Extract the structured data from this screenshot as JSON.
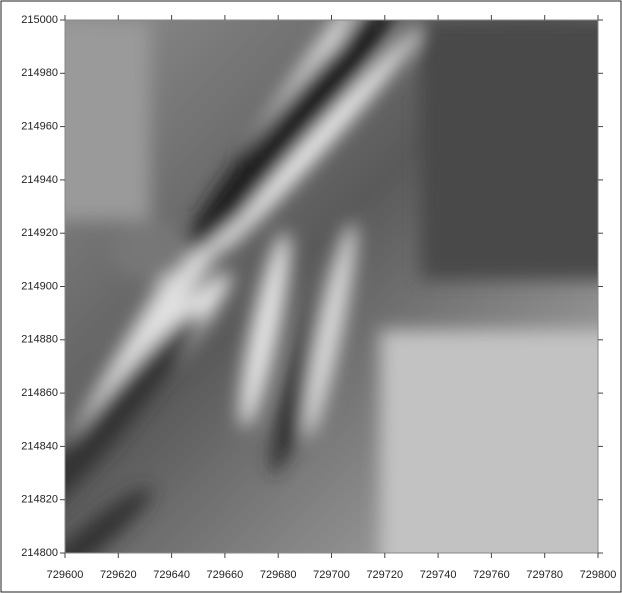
{
  "chart_data": {
    "type": "image",
    "xlim": [
      729600,
      729800
    ],
    "xticks": [
      729600,
      729620,
      729640,
      729660,
      729680,
      729700,
      729720,
      729740,
      729760,
      729780,
      729800
    ],
    "ylim": [
      214800,
      215000
    ],
    "yticks": [
      214800,
      214820,
      214840,
      214860,
      214880,
      214900,
      214920,
      214940,
      214960,
      214980,
      215000
    ]
  }
}
